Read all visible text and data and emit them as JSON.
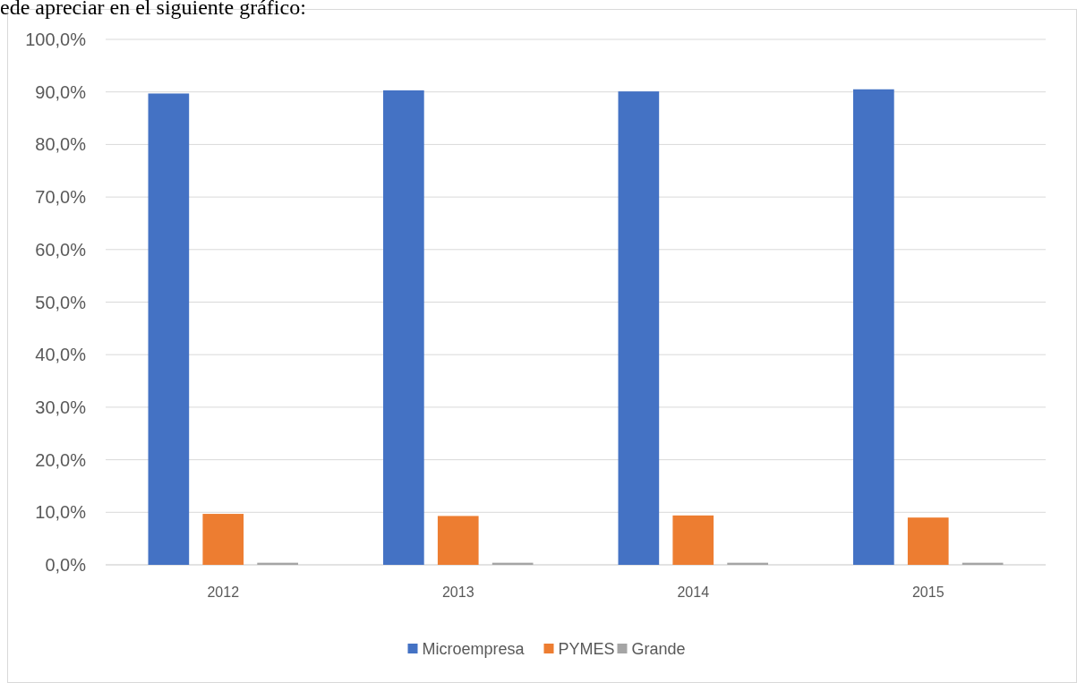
{
  "chart_data": {
    "type": "bar",
    "categories": [
      "2012",
      "2013",
      "2014",
      "2015"
    ],
    "series": [
      {
        "name": "Microempresa",
        "color": "#4472c4",
        "values": [
          89.7,
          90.3,
          90.1,
          90.5
        ]
      },
      {
        "name": "PYMES",
        "color": "#ed7d31",
        "values": [
          9.7,
          9.3,
          9.4,
          9.0
        ]
      },
      {
        "name": "Grande",
        "color": "#a5a5a5",
        "values": [
          0.4,
          0.4,
          0.4,
          0.4
        ]
      }
    ],
    "ylim": [
      0,
      100
    ],
    "yticks": [
      {
        "value": 0,
        "label": "0,0%"
      },
      {
        "value": 10,
        "label": "10,0%"
      },
      {
        "value": 20,
        "label": "20,0%"
      },
      {
        "value": 30,
        "label": "30,0%"
      },
      {
        "value": 40,
        "label": "40,0%"
      },
      {
        "value": 50,
        "label": "50,0%"
      },
      {
        "value": 60,
        "label": "60,0%"
      },
      {
        "value": 70,
        "label": "70,0%"
      },
      {
        "value": 80,
        "label": "80,0%"
      },
      {
        "value": 90,
        "label": "90,0%"
      },
      {
        "value": 100,
        "label": "100,0%"
      }
    ],
    "grid": "y",
    "legend": "bottom",
    "annotations": [
      "ede apreciar en el siguiente gráfico:"
    ]
  }
}
